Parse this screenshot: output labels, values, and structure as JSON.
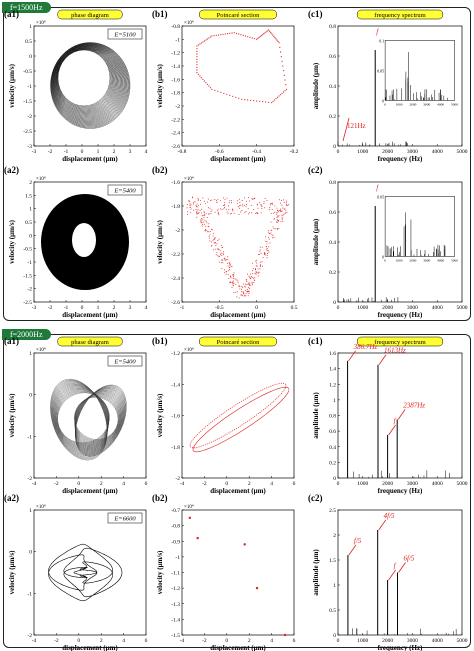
{
  "sections": [
    {
      "badge": "f=1500Hz",
      "rows": [
        {
          "labels": [
            "(a1)",
            "(b1)",
            "(c1)"
          ],
          "energy": "E=5100",
          "phase": {
            "yexp": "×10⁴",
            "yticks": [
              "1",
              "0.5",
              "0",
              "-0.5",
              "-1",
              "-1.5",
              "-2",
              "-2.5",
              "-3"
            ],
            "xticks": [
              "-3",
              "-2",
              "-1",
              "0",
              "1",
              "2",
              "3",
              "4"
            ]
          },
          "poincare": {
            "yexp": "×10⁴",
            "yticks": [
              "-0.8",
              "-1",
              "-1.2",
              "-1.4",
              "-1.6",
              "-1.8",
              "-2",
              "-2.2",
              "-2.4",
              "-2.6"
            ],
            "xticks": [
              "-0.8",
              "-0.6",
              "-0.4",
              "-0.2"
            ]
          },
          "spectrum": {
            "yticks": [
              "0.8",
              "0.6",
              "0.4",
              "0.2",
              "0"
            ],
            "xticks": [
              "0",
              "1000",
              "2000",
              "3000",
              "4000",
              "5000"
            ],
            "annotations": [
              "f",
              "121Hz"
            ],
            "inset": {
              "yticks": [
                "0.1",
                "0.05",
                "0"
              ],
              "xticks": [
                "0",
                "1000",
                "2000",
                "3000",
                "4000",
                "5000"
              ]
            }
          }
        },
        {
          "labels": [
            "(a2)",
            "(b2)",
            "(c2)"
          ],
          "energy": "E=5400",
          "phase": {
            "yexp": "×10⁴",
            "yticks": [
              "2",
              "1.5",
              "1",
              "0.5",
              "0",
              "-0.5",
              "-1",
              "-1.5",
              "-2",
              "-2.5"
            ],
            "xticks": [
              "-3",
              "-2",
              "-1",
              "0",
              "1",
              "2",
              "3",
              "4"
            ]
          },
          "poincare": {
            "yexp": "×10⁴",
            "yticks": [
              "-1.6",
              "-1.8",
              "-2",
              "-2.2",
              "-2.4",
              "-2.6"
            ],
            "xticks": [
              "-1",
              "-0.5",
              "0",
              "0.5"
            ]
          },
          "spectrum": {
            "yticks": [
              "0.8",
              "0.6",
              "0.4",
              "0.2",
              "0"
            ],
            "xticks": [
              "0",
              "1000",
              "2000",
              "3000",
              "4000",
              "5000"
            ],
            "annotations": [
              "f"
            ],
            "inset": {
              "yticks": [
                "0.05",
                "0"
              ],
              "xticks": [
                "0",
                "1000",
                "2000",
                "3000",
                "4000",
                "5000"
              ]
            }
          }
        }
      ]
    },
    {
      "badge": "f=2000Hz",
      "rows": [
        {
          "labels": [
            "(a1)",
            "(b1)",
            "(c1)"
          ],
          "energy": "E=5400",
          "phase": {
            "yexp": "×10⁴",
            "yticks": [
              "1",
              "0",
              "-1",
              "-2"
            ],
            "xticks": [
              "-4",
              "-2",
              "0",
              "2",
              "4",
              "6"
            ]
          },
          "poincare": {
            "yexp": "×10⁴",
            "yticks": [
              "-1.2",
              "-1.4",
              "-1.6",
              "-1.8",
              "-2"
            ],
            "xticks": [
              "-4",
              "-2",
              "0",
              "2",
              "4",
              "6"
            ]
          },
          "spectrum": {
            "yticks": [
              "1.6",
              "1.4",
              "1.2",
              "1",
              "0.8",
              "0.6",
              "0.4",
              "0.2",
              "0"
            ],
            "xticks": [
              "0",
              "1000",
              "2000",
              "3000",
              "4000",
              "5000"
            ],
            "annotations": [
              "386.7Hz",
              "1613Hz",
              "f",
              "2387Hz"
            ]
          }
        },
        {
          "labels": [
            "(a2)",
            "(b2)",
            "(c2)"
          ],
          "energy": "E=6600",
          "phase": {
            "yexp": "×10⁴",
            "yticks": [
              "1",
              "0",
              "-1",
              "-2"
            ],
            "xticks": [
              "-4",
              "-2",
              "0",
              "2",
              "4",
              "6"
            ]
          },
          "poincare": {
            "yexp": "×10⁴",
            "yticks": [
              "-0.7",
              "-0.8",
              "-0.9",
              "-1",
              "-1.1",
              "-1.2",
              "-1.3",
              "-1.4",
              "-1.5"
            ],
            "xticks": [
              "-4",
              "-2",
              "0",
              "2",
              "4",
              "6"
            ]
          },
          "spectrum": {
            "yticks": [
              "2.5",
              "2",
              "1.5",
              "1",
              "0.5",
              "0"
            ],
            "xticks": [
              "0",
              "1000",
              "2000",
              "3000",
              "4000",
              "5000"
            ],
            "annotations": [
              "f/5",
              "4f/5",
              "f",
              "6f/5"
            ]
          }
        }
      ]
    }
  ],
  "titles": {
    "phase": "phase diagram",
    "poincare": "Poincaré section",
    "spectrum": "frequency spectrum"
  },
  "axis": {
    "velocity": "velocity (μm/s)",
    "displacement": "displacement (μm)",
    "amplitude": "amplitude (μm)",
    "frequency": "frequency (Hz)"
  },
  "colors": {
    "badge": "#1f7a3a",
    "title_bg": "#ffff33",
    "poincare": "#e02020",
    "annotation": "#e02020"
  },
  "chart_data": [
    {
      "type": "scatter",
      "panel": "f1500-b1",
      "desc_points": [
        [
          -0.8,
          -1.1
        ],
        [
          -0.7,
          -0.95
        ],
        [
          -0.55,
          -0.9
        ],
        [
          -0.4,
          -1.0
        ],
        [
          -0.32,
          -0.86
        ],
        [
          -0.25,
          -1.05
        ],
        [
          -0.2,
          -1.75
        ],
        [
          -0.3,
          -1.95
        ],
        [
          -0.5,
          -1.9
        ],
        [
          -0.7,
          -1.75
        ],
        [
          -0.8,
          -1.5
        ]
      ]
    },
    {
      "type": "bar",
      "panel": "f1500-c1",
      "x": [
        121,
        1500
      ],
      "values": [
        0.02,
        0.8
      ]
    },
    {
      "type": "bar",
      "panel": "f2000-c1",
      "x": [
        386.7,
        1613,
        2000,
        2387
      ],
      "values": [
        1.5,
        1.45,
        0.55,
        0.75
      ]
    },
    {
      "type": "bar",
      "panel": "f2000-c2",
      "x": [
        400,
        1600,
        2000,
        2400
      ],
      "values": [
        1.6,
        2.1,
        1.1,
        1.25
      ]
    },
    {
      "type": "scatter",
      "panel": "f2000-b2",
      "x": [
        -3.3,
        -2.6,
        1.6,
        2.7,
        5.2
      ],
      "y": [
        -0.75,
        -0.88,
        -0.92,
        -1.2,
        -1.5
      ]
    }
  ]
}
